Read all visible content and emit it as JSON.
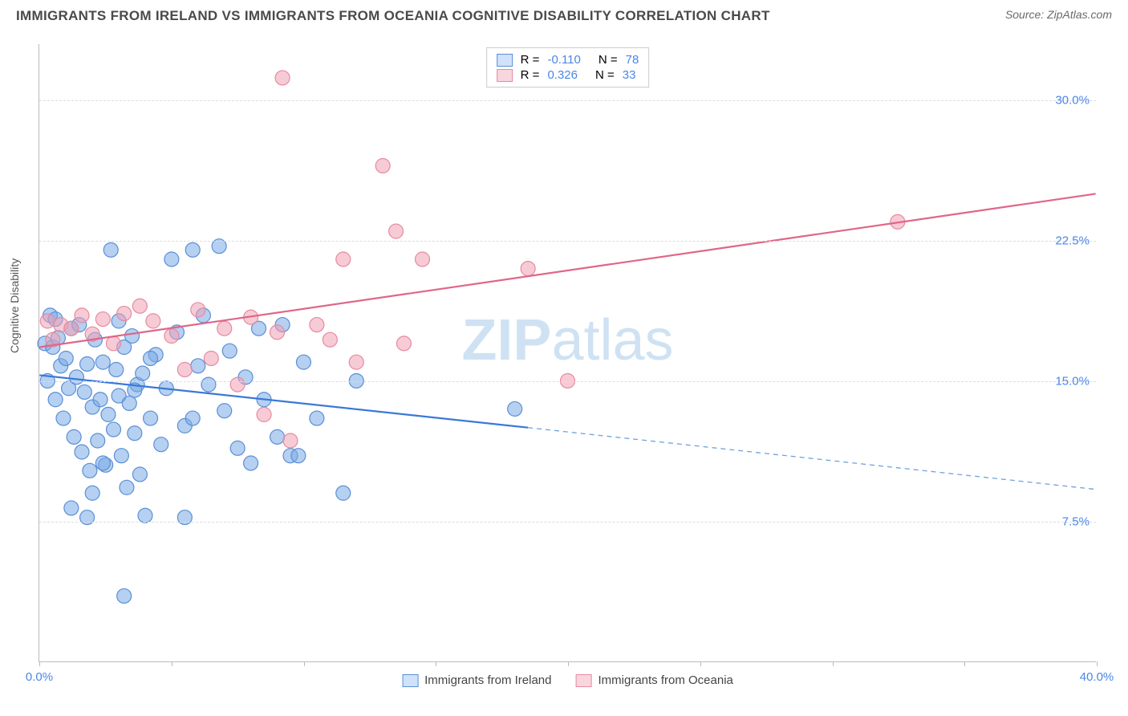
{
  "header": {
    "title": "IMMIGRANTS FROM IRELAND VS IMMIGRANTS FROM OCEANIA COGNITIVE DISABILITY CORRELATION CHART",
    "source": "Source: ZipAtlas.com"
  },
  "chart": {
    "type": "scatter",
    "background_color": "#ffffff",
    "grid_color": "#dddddd",
    "axis_color": "#bbbbbb",
    "ylabel": "Cognitive Disability",
    "ylabel_fontsize": 14,
    "xlim": [
      0,
      40
    ],
    "ylim": [
      0,
      33
    ],
    "yticks": [
      {
        "pos": 7.5,
        "label": "7.5%"
      },
      {
        "pos": 15.0,
        "label": "15.0%"
      },
      {
        "pos": 22.5,
        "label": "22.5%"
      },
      {
        "pos": 30.0,
        "label": "30.0%"
      }
    ],
    "xticks_pos": [
      0,
      5,
      10,
      15,
      20,
      25,
      30,
      35,
      40
    ],
    "xtick_labels": {
      "first": "0.0%",
      "last": "40.0%"
    },
    "tick_label_color": "#4a86e8",
    "watermark": {
      "bold": "ZIP",
      "rest": "atlas",
      "color": "#cfe2f3",
      "fontsize": 72
    },
    "series": [
      {
        "id": "ireland",
        "label": "Immigrants from Ireland",
        "color_fill": "rgba(120,170,230,0.55)",
        "color_stroke": "#5b8fd6",
        "swatch_fill": "#cfe2f9",
        "swatch_border": "#5b8fd6",
        "marker_r": 9,
        "R": "-0.110",
        "N": "78",
        "trend": {
          "x1": 0,
          "y1": 15.3,
          "x2": 18.5,
          "y2": 12.5,
          "ext_x2": 40,
          "ext_y2": 9.2,
          "solid_color": "#3b78d8",
          "solid_width": 2.2,
          "dash_color": "#6fa0e0",
          "dash_pattern": "6 5",
          "dash_width": 1.3
        },
        "points": [
          [
            0.2,
            17.0
          ],
          [
            0.3,
            15.0
          ],
          [
            0.4,
            18.5
          ],
          [
            0.5,
            16.8
          ],
          [
            0.6,
            14.0
          ],
          [
            0.7,
            17.3
          ],
          [
            0.8,
            15.8
          ],
          [
            0.9,
            13.0
          ],
          [
            1.0,
            16.2
          ],
          [
            1.1,
            14.6
          ],
          [
            1.2,
            17.8
          ],
          [
            1.3,
            12.0
          ],
          [
            1.4,
            15.2
          ],
          [
            1.5,
            18.0
          ],
          [
            1.6,
            11.2
          ],
          [
            1.7,
            14.4
          ],
          [
            1.8,
            15.9
          ],
          [
            1.9,
            10.2
          ],
          [
            2.0,
            13.6
          ],
          [
            2.1,
            17.2
          ],
          [
            2.2,
            11.8
          ],
          [
            2.3,
            14.0
          ],
          [
            2.4,
            16.0
          ],
          [
            2.5,
            10.5
          ],
          [
            2.6,
            13.2
          ],
          [
            2.7,
            22.0
          ],
          [
            2.8,
            12.4
          ],
          [
            2.9,
            15.6
          ],
          [
            3.0,
            14.2
          ],
          [
            3.1,
            11.0
          ],
          [
            3.2,
            16.8
          ],
          [
            3.3,
            9.3
          ],
          [
            3.4,
            13.8
          ],
          [
            3.5,
            17.4
          ],
          [
            3.6,
            12.2
          ],
          [
            3.7,
            14.8
          ],
          [
            3.8,
            10.0
          ],
          [
            3.9,
            15.4
          ],
          [
            4.0,
            7.8
          ],
          [
            4.2,
            13.0
          ],
          [
            4.4,
            16.4
          ],
          [
            4.6,
            11.6
          ],
          [
            4.8,
            14.6
          ],
          [
            5.0,
            21.5
          ],
          [
            5.2,
            17.6
          ],
          [
            5.5,
            12.6
          ],
          [
            5.8,
            22.0
          ],
          [
            6.0,
            15.8
          ],
          [
            6.2,
            18.5
          ],
          [
            6.8,
            22.2
          ],
          [
            7.0,
            13.4
          ],
          [
            7.2,
            16.6
          ],
          [
            7.5,
            11.4
          ],
          [
            8.0,
            10.6
          ],
          [
            8.3,
            17.8
          ],
          [
            8.5,
            14.0
          ],
          [
            9.0,
            12.0
          ],
          [
            9.2,
            18.0
          ],
          [
            9.5,
            11.0
          ],
          [
            9.8,
            11.0
          ],
          [
            10.0,
            16.0
          ],
          [
            10.5,
            13.0
          ],
          [
            11.5,
            9.0
          ],
          [
            12.0,
            15.0
          ],
          [
            18.0,
            13.5
          ],
          [
            3.2,
            3.5
          ],
          [
            1.8,
            7.7
          ],
          [
            5.5,
            7.7
          ],
          [
            1.2,
            8.2
          ],
          [
            2.4,
            10.6
          ],
          [
            3.6,
            14.5
          ],
          [
            4.2,
            16.2
          ],
          [
            5.8,
            13.0
          ],
          [
            6.4,
            14.8
          ],
          [
            7.8,
            15.2
          ],
          [
            2.0,
            9.0
          ],
          [
            3.0,
            18.2
          ],
          [
            0.6,
            18.3
          ]
        ]
      },
      {
        "id": "oceania",
        "label": "Immigrants from Oceania",
        "color_fill": "rgba(240,160,180,0.55)",
        "color_stroke": "#e68aa0",
        "swatch_fill": "#f9d5de",
        "swatch_border": "#e68aa0",
        "marker_r": 9,
        "R": "0.326",
        "N": "33",
        "trend": {
          "x1": 0,
          "y1": 16.8,
          "x2": 40,
          "y2": 25.0,
          "solid_color": "#e06688",
          "solid_width": 2.2
        },
        "points": [
          [
            0.3,
            18.2
          ],
          [
            0.5,
            17.2
          ],
          [
            0.8,
            18.0
          ],
          [
            1.2,
            17.8
          ],
          [
            1.6,
            18.5
          ],
          [
            2.0,
            17.5
          ],
          [
            2.4,
            18.3
          ],
          [
            2.8,
            17.0
          ],
          [
            3.2,
            18.6
          ],
          [
            3.8,
            19.0
          ],
          [
            4.3,
            18.2
          ],
          [
            5.0,
            17.4
          ],
          [
            5.5,
            15.6
          ],
          [
            6.0,
            18.8
          ],
          [
            6.5,
            16.2
          ],
          [
            7.0,
            17.8
          ],
          [
            7.5,
            14.8
          ],
          [
            8.0,
            18.4
          ],
          [
            8.5,
            13.2
          ],
          [
            9.0,
            17.6
          ],
          [
            9.2,
            31.2
          ],
          [
            9.5,
            11.8
          ],
          [
            10.5,
            18.0
          ],
          [
            11.0,
            17.2
          ],
          [
            11.5,
            21.5
          ],
          [
            12.0,
            16.0
          ],
          [
            13.0,
            26.5
          ],
          [
            13.5,
            23.0
          ],
          [
            13.8,
            17.0
          ],
          [
            14.5,
            21.5
          ],
          [
            18.5,
            21.0
          ],
          [
            20.0,
            15.0
          ],
          [
            32.5,
            23.5
          ]
        ]
      }
    ],
    "legend_fontsize": 15
  }
}
